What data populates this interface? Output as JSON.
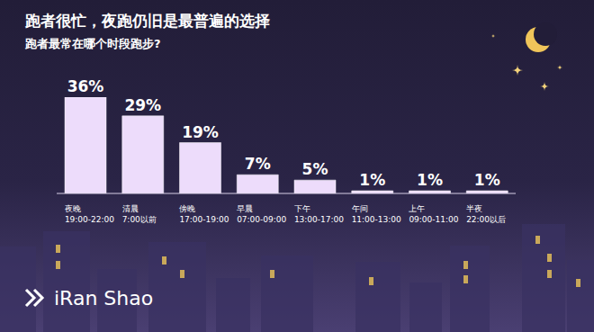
{
  "chart_data": {
    "type": "bar",
    "title": "跑者很忙，夜跑仍旧是最普遍的选择",
    "subtitle": "跑者最常在哪个时段跑步?",
    "categories": [
      "夜晚\n19:00-22:00",
      "清晨\n7:00以前",
      "傍晚\n17:00-19:00",
      "早晨\n07:00-09:00",
      "下午\n13:00-17:00",
      "午间\n11:00-13:00",
      "上午\n09:00-11:00",
      "半夜\n22:00以后"
    ],
    "values": [
      36,
      29,
      19,
      7,
      5,
      1,
      1,
      1
    ],
    "value_labels": [
      "36%",
      "29%",
      "19%",
      "7%",
      "5%",
      "1%",
      "1%",
      "1%"
    ],
    "color": "#eddcfb",
    "ylim": [
      0,
      36
    ],
    "data_labels": true,
    "tick_labels": "x",
    "grid": false
  },
  "logo": "iRan Shao"
}
